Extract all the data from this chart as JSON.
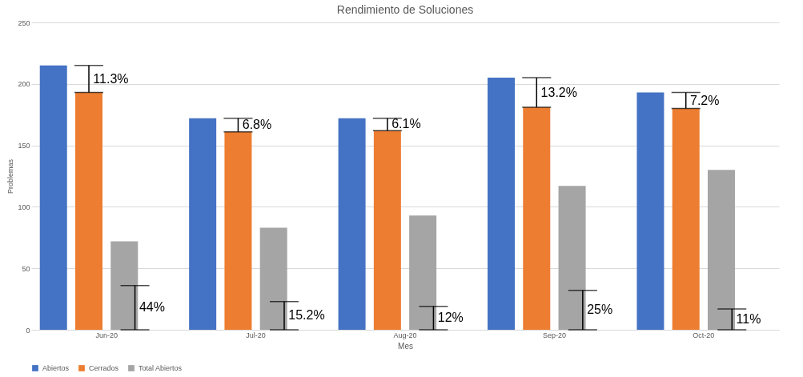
{
  "chart_data": {
    "type": "bar",
    "title": "Rendimiento de Soluciones",
    "xlabel": "Mes",
    "ylabel": "Problemas",
    "categories": [
      "Jun-20",
      "Jul-20",
      "Aug-20",
      "Sep-20",
      "Oct-20"
    ],
    "series": [
      {
        "name": "Abiertos",
        "color": "#4472c4",
        "values": [
          215,
          172,
          172,
          205,
          193
        ]
      },
      {
        "name": "Cerrados",
        "color": "#ed7d31",
        "values": [
          193,
          161,
          162,
          181,
          180
        ],
        "errors": [
          [
            193,
            215
          ],
          [
            161,
            172
          ],
          [
            162,
            172
          ],
          [
            181,
            205
          ],
          [
            180,
            193
          ]
        ]
      },
      {
        "name": "Total Abiertos",
        "color": "#a5a5a5",
        "values": [
          72,
          83,
          93,
          117,
          130
        ],
        "errors": [
          [
            0,
            36
          ],
          [
            0,
            23
          ],
          [
            0,
            19
          ],
          [
            0,
            32
          ],
          [
            0,
            17
          ]
        ]
      }
    ],
    "annotations": [
      "11.3%",
      "6.8%",
      "6.1%",
      "13.2%",
      "7.2%",
      "44%",
      "15.2%",
      "12%",
      "25%",
      "11%"
    ],
    "ylim": [
      0,
      250
    ],
    "yticks": [
      0,
      50,
      100,
      150,
      200,
      250
    ],
    "grid": "y",
    "legend": "bottom"
  }
}
